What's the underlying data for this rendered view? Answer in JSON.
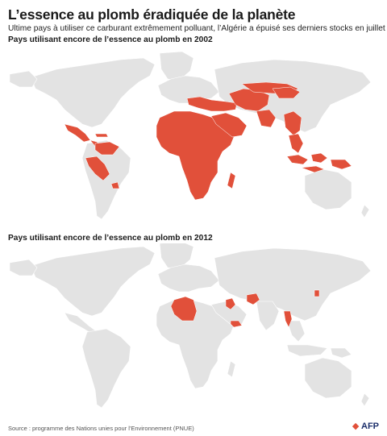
{
  "title": "L’essence au plomb éradiquée de la planète",
  "subtitle": "Ultime pays à utiliser ce carburant extrêmement polluant, l’Algérie a épuisé ses derniers stocks en juillet",
  "colors": {
    "highlight": "#e1503a",
    "land": "#e3e3e3",
    "background": "#ffffff"
  },
  "panels": [
    {
      "title": "Pays utilisant encore de l’essence au plomb en 2002",
      "highlighted_regions": [
        "Africa",
        "Middle East",
        "Central Asia",
        "Caucasus",
        "Turkey",
        "Balkans",
        "Russia (South)",
        "Mongolia",
        "China",
        "Southeast Asia",
        "Indonesia",
        "Papua New Guinea",
        "Mexico",
        "Central America",
        "Cuba",
        "Venezuela",
        "Colombia",
        "Ecuador",
        "Peru",
        "Bolivia",
        "Uruguay",
        "Madagascar"
      ]
    },
    {
      "title": "Pays utilisant encore de l’essence au plomb en 2012",
      "highlighted_regions": [
        "Algeria",
        "Iraq",
        "Afghanistan",
        "Yemen",
        "Myanmar",
        "North Korea"
      ]
    }
  ],
  "footer": {
    "source": "Source : programme des Nations unies pour l'Environnement (PNUE)",
    "logo": "AFP"
  }
}
